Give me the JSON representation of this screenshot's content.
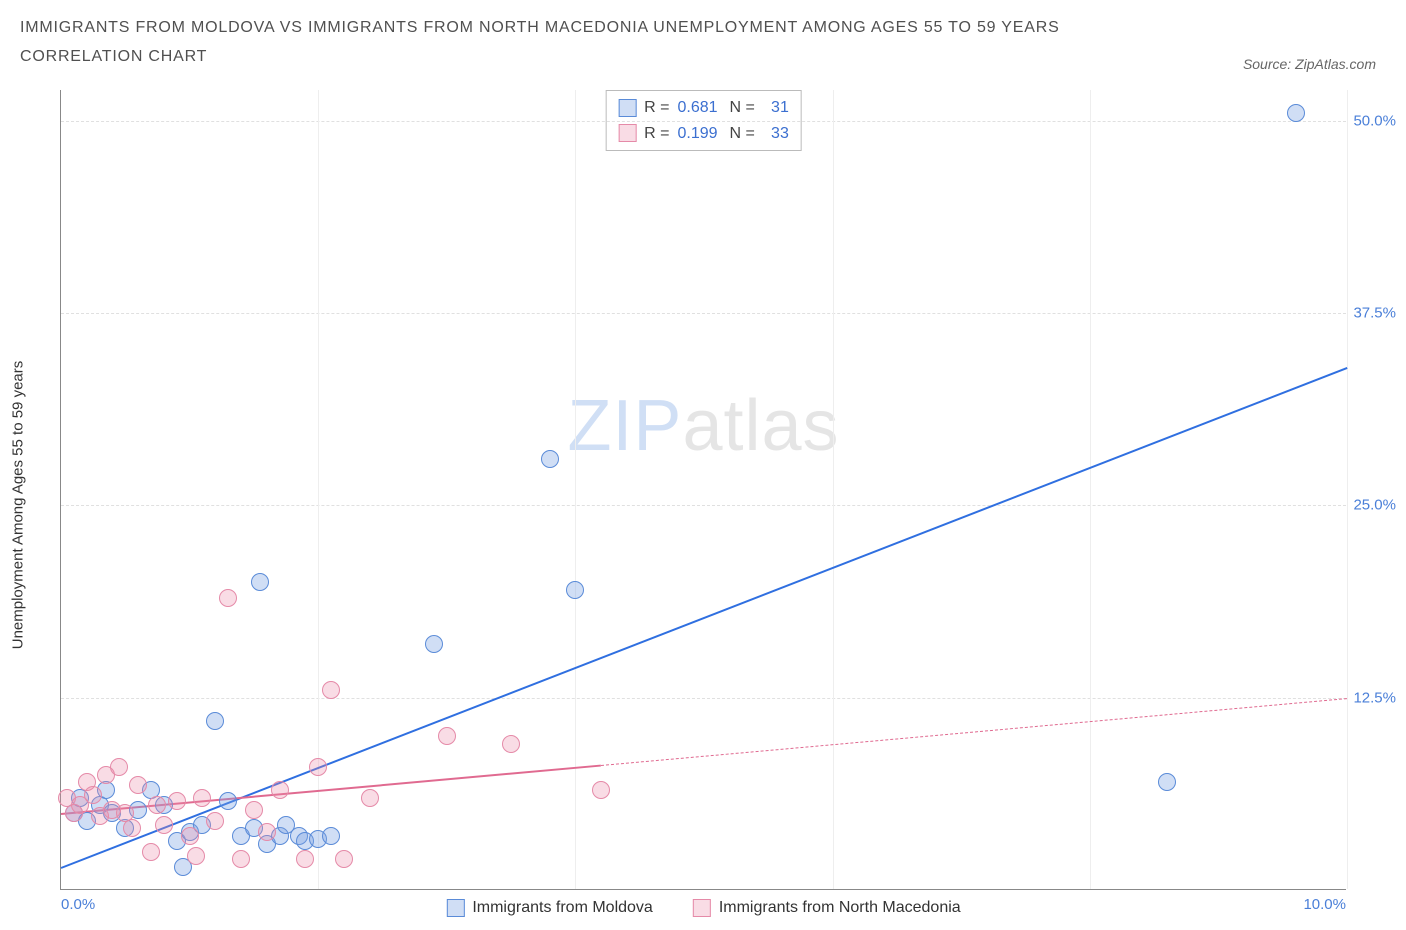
{
  "title_line1": "IMMIGRANTS FROM MOLDOVA VS IMMIGRANTS FROM NORTH MACEDONIA UNEMPLOYMENT AMONG AGES 55 TO 59 YEARS",
  "title_line2": "CORRELATION CHART",
  "source_label": "Source: ZipAtlas.com",
  "ylabel": "Unemployment Among Ages 55 to 59 years",
  "watermark_a": "ZIP",
  "watermark_b": "atlas",
  "chart": {
    "type": "scatter",
    "xlim": [
      0,
      10
    ],
    "ylim": [
      0,
      52
    ],
    "xtick_left": "0.0%",
    "xtick_right": "10.0%",
    "yticks": [
      {
        "v": 12.5,
        "label": "12.5%"
      },
      {
        "v": 25.0,
        "label": "25.0%"
      },
      {
        "v": 37.5,
        "label": "37.5%"
      },
      {
        "v": 50.0,
        "label": "50.0%"
      }
    ],
    "xgrid": [
      2,
      4,
      6,
      8,
      10
    ],
    "background_color": "#ffffff",
    "grid_color": "#e8e8e8",
    "series": [
      {
        "name": "Immigrants from Moldova",
        "color_fill": "rgba(120,160,225,0.35)",
        "color_stroke": "#5a8bd8",
        "trend_color": "#2f6fe0",
        "marker_radius": 9,
        "R": "0.681",
        "N": "31",
        "trend": {
          "x1": 0,
          "y1": 1.5,
          "x2": 10,
          "y2": 34,
          "dash_from_x": null
        },
        "points": [
          [
            0.1,
            5
          ],
          [
            0.15,
            6
          ],
          [
            0.2,
            4.5
          ],
          [
            0.3,
            5.5
          ],
          [
            0.35,
            6.5
          ],
          [
            0.4,
            5
          ],
          [
            0.5,
            4
          ],
          [
            0.6,
            5.2
          ],
          [
            0.7,
            6.5
          ],
          [
            0.8,
            5.5
          ],
          [
            0.9,
            3.2
          ],
          [
            1.0,
            3.8
          ],
          [
            1.1,
            4.2
          ],
          [
            1.2,
            11
          ],
          [
            1.3,
            5.8
          ],
          [
            1.4,
            3.5
          ],
          [
            1.5,
            4.0
          ],
          [
            1.6,
            3.0
          ],
          [
            1.55,
            20
          ],
          [
            1.7,
            3.5
          ],
          [
            1.75,
            4.2
          ],
          [
            1.85,
            3.5
          ],
          [
            1.9,
            3.2
          ],
          [
            2.0,
            3.3
          ],
          [
            2.1,
            3.5
          ],
          [
            2.9,
            16
          ],
          [
            3.8,
            28
          ],
          [
            4.0,
            19.5
          ],
          [
            8.6,
            7
          ],
          [
            9.6,
            50.5
          ],
          [
            0.95,
            1.5
          ]
        ]
      },
      {
        "name": "Immigrants from North Macedonia",
        "color_fill": "rgba(235,140,170,0.30)",
        "color_stroke": "#e58aa8",
        "trend_color": "#e06a90",
        "marker_radius": 9,
        "R": "0.199",
        "N": "33",
        "trend": {
          "x1": 0,
          "y1": 5.0,
          "x2": 10,
          "y2": 12.5,
          "dash_from_x": 4.2
        },
        "points": [
          [
            0.05,
            6
          ],
          [
            0.1,
            5
          ],
          [
            0.15,
            5.5
          ],
          [
            0.2,
            7
          ],
          [
            0.25,
            6.2
          ],
          [
            0.3,
            4.8
          ],
          [
            0.35,
            7.5
          ],
          [
            0.4,
            5.2
          ],
          [
            0.45,
            8
          ],
          [
            0.5,
            5
          ],
          [
            0.55,
            4
          ],
          [
            0.6,
            6.8
          ],
          [
            0.7,
            2.5
          ],
          [
            0.75,
            5.5
          ],
          [
            0.8,
            4.2
          ],
          [
            0.9,
            5.8
          ],
          [
            1.0,
            3.5
          ],
          [
            1.05,
            2.2
          ],
          [
            1.1,
            6
          ],
          [
            1.2,
            4.5
          ],
          [
            1.3,
            19
          ],
          [
            1.4,
            2.0
          ],
          [
            1.5,
            5.2
          ],
          [
            1.6,
            3.8
          ],
          [
            1.7,
            6.5
          ],
          [
            1.9,
            2.0
          ],
          [
            2.0,
            8
          ],
          [
            2.1,
            13
          ],
          [
            2.2,
            2.0
          ],
          [
            2.4,
            6
          ],
          [
            3.0,
            10
          ],
          [
            3.5,
            9.5
          ],
          [
            4.2,
            6.5
          ]
        ]
      }
    ],
    "legend": {
      "swatch_size": 18,
      "r_label": "R =",
      "n_label": "N ="
    }
  }
}
